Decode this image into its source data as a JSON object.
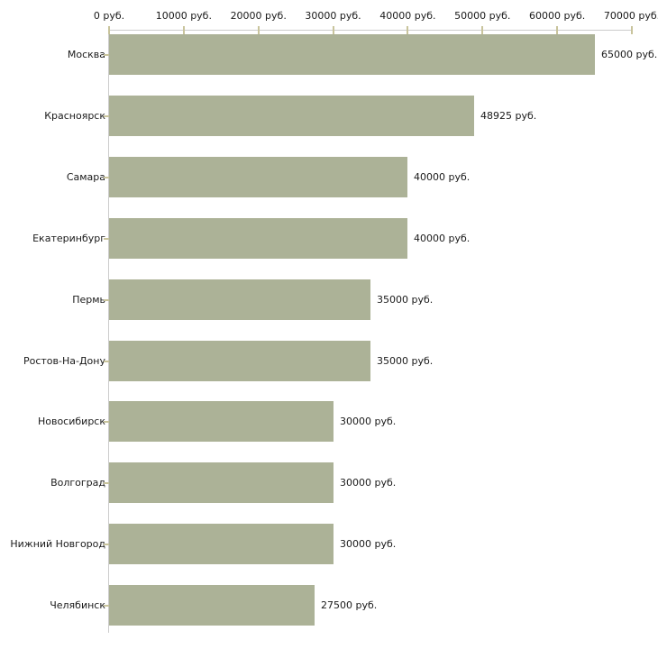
{
  "chart_data": {
    "type": "bar",
    "orientation": "horizontal",
    "title": "",
    "xlabel": "",
    "ylabel": "",
    "unit": "руб.",
    "categories": [
      "Москва",
      "Красноярск",
      "Самара",
      "Екатеринбург",
      "Пермь",
      "Ростов-На-Дону",
      "Новосибирск",
      "Волгоград",
      "Нижний Новгород",
      "Челябинск"
    ],
    "values": [
      65000,
      48925,
      40000,
      40000,
      35000,
      35000,
      30000,
      30000,
      30000,
      27500
    ],
    "value_labels": [
      "65000 руб.",
      "48925 руб.",
      "40000 руб.",
      "40000 руб.",
      "35000 руб.",
      "35000 руб.",
      "30000 руб.",
      "30000 руб.",
      "30000 руб.",
      "27500 руб."
    ],
    "x_ticks": [
      0,
      10000,
      20000,
      30000,
      40000,
      50000,
      60000,
      70000
    ],
    "x_tick_labels": [
      "0 руб.",
      "10000 руб.",
      "20000 руб.",
      "30000 руб.",
      "40000 руб.",
      "50000 руб.",
      "60000 руб.",
      "70000 руб."
    ],
    "xlim": [
      0,
      70000
    ],
    "grid": false,
    "legend": "none",
    "axis_position": "top",
    "bar_color": "#acb297",
    "axis_color": "#cccccc",
    "tick_color": "#c9c49c",
    "text_color": "#1a1a1a"
  }
}
